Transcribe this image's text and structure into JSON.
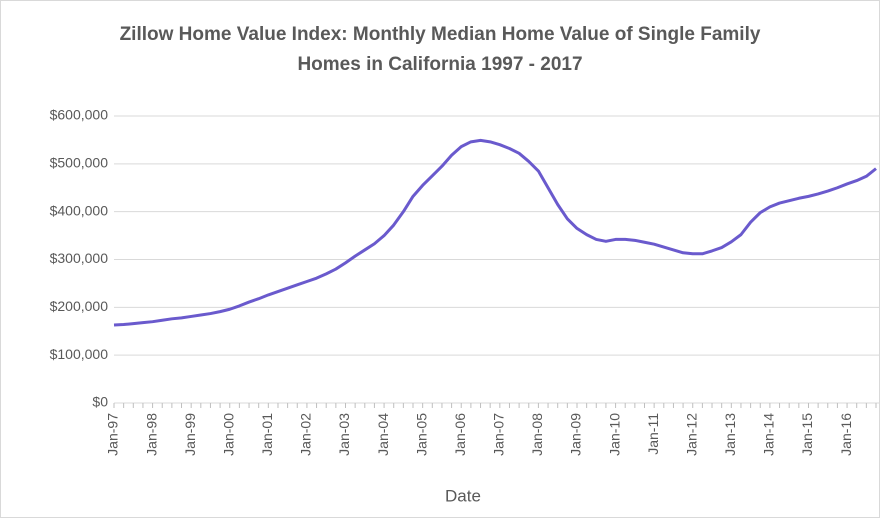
{
  "chart_data": {
    "type": "line",
    "title": "Zillow Home Value Index: Monthly Median Home Value of Single Family Homes in California 1997 - 2017",
    "x_label": "Date",
    "categories": [
      "Jan-97",
      null,
      null,
      null,
      "Jan-98",
      null,
      null,
      null,
      "Jan-99",
      null,
      null,
      null,
      "Jan-00",
      null,
      null,
      null,
      "Jan-01",
      null,
      null,
      null,
      "Jan-02",
      null,
      null,
      null,
      "Jan-03",
      null,
      null,
      null,
      "Jan-04",
      null,
      null,
      null,
      "Jan-05",
      null,
      null,
      null,
      "Jan-06",
      null,
      null,
      null,
      "Jan-07",
      null,
      null,
      null,
      "Jan-08",
      null,
      null,
      null,
      "Jan-09",
      null,
      null,
      null,
      "Jan-10",
      null,
      null,
      null,
      "Jan-11",
      null,
      null,
      null,
      "Jan-12",
      null,
      null,
      null,
      "Jan-13",
      null,
      null,
      null,
      "Jan-14",
      null,
      null,
      null,
      "Jan-15",
      null,
      null,
      null,
      "Jan-16",
      null,
      null,
      null
    ],
    "series": [
      {
        "color": "#6a5acd",
        "values": [
          163000,
          164000,
          166000,
          168000,
          170000,
          173000,
          176000,
          178000,
          181000,
          184000,
          187000,
          191000,
          196000,
          203000,
          211000,
          218000,
          226000,
          233000,
          240000,
          247000,
          254000,
          261000,
          270000,
          280000,
          293000,
          307000,
          320000,
          333000,
          350000,
          372000,
          400000,
          432000,
          455000,
          475000,
          495000,
          518000,
          536000,
          546000,
          549000,
          546000,
          540000,
          532000,
          522000,
          505000,
          485000,
          450000,
          415000,
          385000,
          365000,
          352000,
          342000,
          338000,
          342000,
          342000,
          340000,
          336000,
          332000,
          326000,
          320000,
          314000,
          312000,
          312000,
          318000,
          325000,
          337000,
          352000,
          378000,
          398000,
          410000,
          418000,
          423000,
          428000,
          432000,
          437000,
          443000,
          450000,
          458000,
          465000,
          474000,
          490000
        ]
      }
    ],
    "ylim": [
      0,
      600000
    ],
    "yticks": [
      {
        "value": 0,
        "label": "$0"
      },
      {
        "value": 100000,
        "label": "$100,000"
      },
      {
        "value": 200000,
        "label": "$200,000"
      },
      {
        "value": 300000,
        "label": "$300,000"
      },
      {
        "value": 400000,
        "label": "$400,000"
      },
      {
        "value": 500000,
        "label": "$500,000"
      },
      {
        "value": 600000,
        "label": "$600,000"
      }
    ],
    "grid": true
  }
}
